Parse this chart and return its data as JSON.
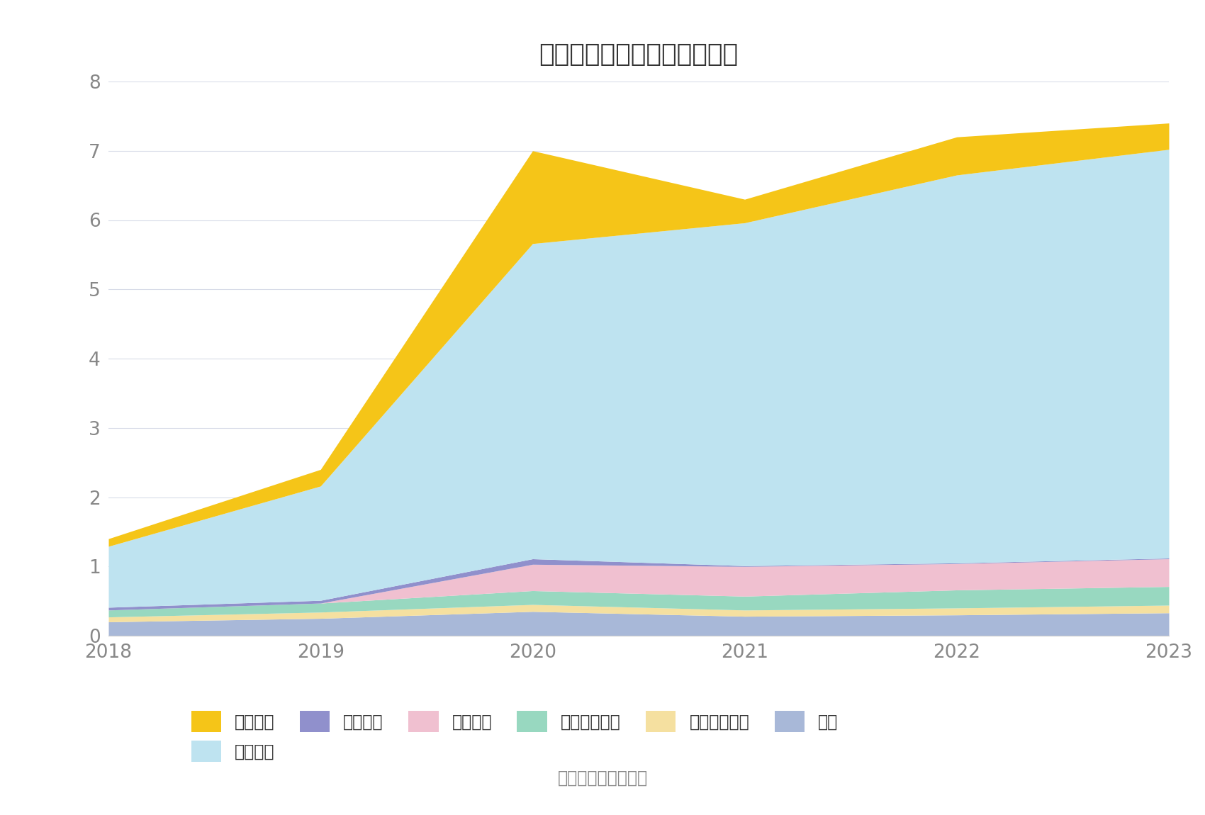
{
  "title": "历年主要负债堆积图（亿元）",
  "years": [
    2018,
    2019,
    2020,
    2021,
    2022,
    2023
  ],
  "colors": {
    "应付票据": "#F5C518",
    "应付账款": "#BEE3F0",
    "预收款项": "#9090CC",
    "合同负债": "#F0C0D0",
    "应付职工薪酬": "#98D8C0",
    "长期递延收益": "#F5E0A0",
    "其它": "#A8B8D8"
  },
  "stack_order": [
    "其它",
    "长期递延收益",
    "应付职工薪酬",
    "合同负债",
    "预收款项",
    "应付账款",
    "应付票据"
  ],
  "stack_data": {
    "其它": [
      0.2,
      0.25,
      0.35,
      0.28,
      0.3,
      0.33
    ],
    "长期递延收益": [
      0.07,
      0.09,
      0.1,
      0.09,
      0.1,
      0.11
    ],
    "应付职工薪酬": [
      0.1,
      0.13,
      0.2,
      0.2,
      0.26,
      0.27
    ],
    "合同负债": [
      0.0,
      0.0,
      0.38,
      0.43,
      0.38,
      0.4
    ],
    "预收款项": [
      0.04,
      0.04,
      0.08,
      0.01,
      0.01,
      0.01
    ],
    "应付账款": [
      0.88,
      1.65,
      4.55,
      4.95,
      5.6,
      5.9
    ],
    "应付票据": [
      0.11,
      0.24,
      1.34,
      0.34,
      0.55,
      0.38
    ]
  },
  "legend_order": [
    "应付票据",
    "应付账款",
    "预收款项",
    "合同负债",
    "应付职工薪酬",
    "长期递延收益",
    "其它"
  ],
  "ylim": [
    0,
    8
  ],
  "yticks": [
    0,
    1,
    2,
    3,
    4,
    5,
    6,
    7,
    8
  ],
  "source_text": "数据来源：恒生聚源",
  "background_color": "#FFFFFF",
  "grid_color": "#D8DCE8"
}
